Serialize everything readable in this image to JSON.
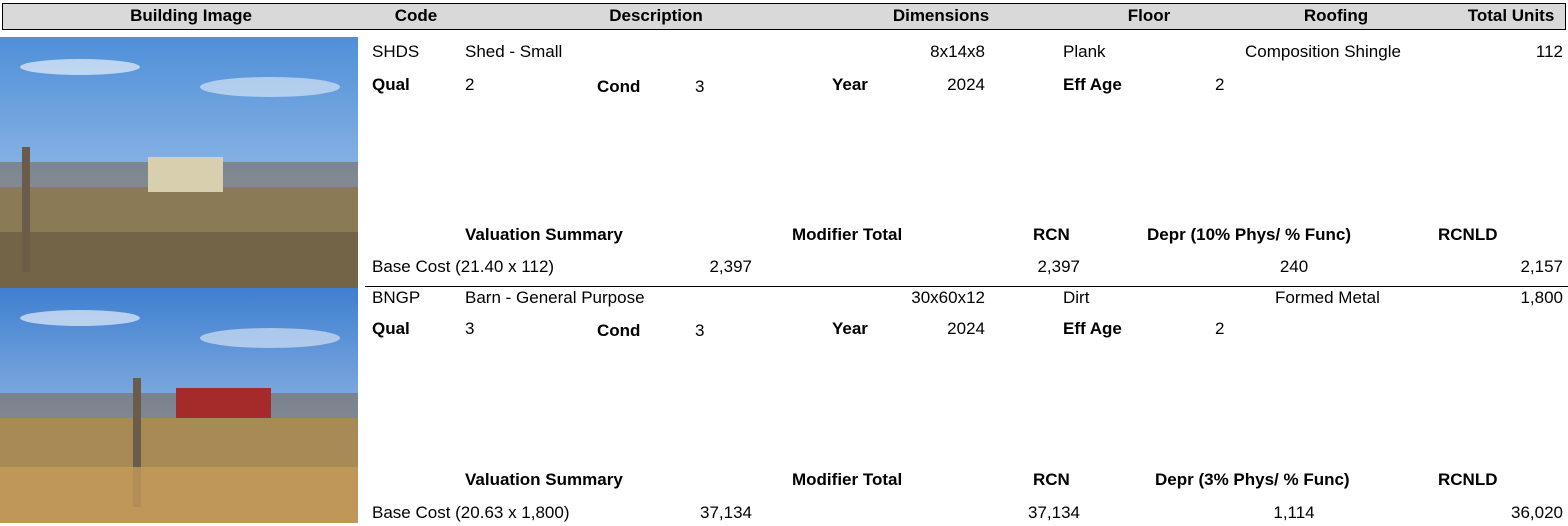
{
  "header": {
    "columns": [
      "Building Image",
      "Code",
      "Description",
      "Dimensions",
      "Floor",
      "Roofing",
      "Total Units"
    ]
  },
  "buildings": [
    {
      "code": "SHDS",
      "description": "Shed - Small",
      "dimensions": "8x14x8",
      "floor": "Plank",
      "roofing": "Composition Shingle",
      "total_units": "112",
      "qual_label": "Qual",
      "qual": "2",
      "cond_label": "Cond",
      "cond": "3",
      "year_label": "Year",
      "year": "2024",
      "eff_age_label": "Eff Age",
      "eff_age": "2",
      "valuation_headers": [
        "Valuation Summary",
        "Modifier Total",
        "RCN",
        "Depr (10% Phys/ % Func)",
        "RCNLD"
      ],
      "base_cost": "Base Cost (21.40 x 112)",
      "base_value": "2,397",
      "rcn": "2,397",
      "depr": "240",
      "rcnld": "2,157"
    },
    {
      "code": "BNGP",
      "description": "Barn - General Purpose",
      "dimensions": "30x60x12",
      "floor": "Dirt",
      "roofing": "Formed Metal",
      "total_units": "1,800",
      "qual_label": "Qual",
      "qual": "3",
      "cond_label": "Cond",
      "cond": "3",
      "year_label": "Year",
      "year": "2024",
      "eff_age_label": "Eff Age",
      "eff_age": "2",
      "valuation_headers": [
        "Valuation Summary",
        "Modifier Total",
        "RCN",
        "Depr (3% Phys/ % Func)",
        "RCNLD"
      ],
      "base_cost": "Base Cost (20.63 x 1,800)",
      "base_value": "37,134",
      "rcn": "37,134",
      "depr": "1,114",
      "rcnld": "36,020"
    }
  ]
}
